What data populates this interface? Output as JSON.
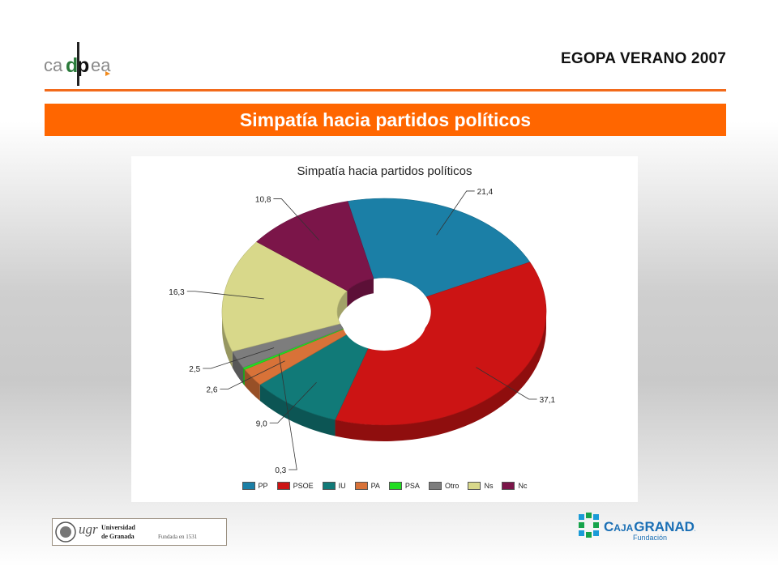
{
  "header": {
    "logo_text": "cadpea",
    "title": "EGOPA VERANO 2007"
  },
  "banner": {
    "title": "Simpatía hacia partidos políticos"
  },
  "colors": {
    "accent_orange": "#ff6600",
    "rule_orange": "#f26a1b"
  },
  "chart_data": {
    "type": "pie",
    "style": "3d-donut",
    "title": "Simpatía hacia partidos políticos",
    "legend_position": "bottom",
    "categories": [
      "PP",
      "PSOE",
      "IU",
      "PA",
      "PSA",
      "Otro",
      "Ns",
      "Nc"
    ],
    "values": [
      21.4,
      37.1,
      9.0,
      2.6,
      0.3,
      2.5,
      16.3,
      10.8
    ],
    "value_labels": [
      "21,4",
      "37,1",
      "9,0",
      "2,6",
      "0,3",
      "2,5",
      "16,3",
      "10,8"
    ],
    "series_colors": [
      "#1b7fa6",
      "#cc1414",
      "#117a78",
      "#d87238",
      "#22dd22",
      "#7d7d7d",
      "#d8d88a",
      "#7b1549"
    ]
  },
  "footer": {
    "ugr": {
      "acronym": "ugr",
      "line1": "Universidad",
      "line2": "de Granada",
      "founded": "Fundada en 1531"
    },
    "caja": {
      "name_part1": "C",
      "name_part2": "AJA",
      "name_part3": "GRANADA",
      "subtitle": "Fundación"
    }
  }
}
